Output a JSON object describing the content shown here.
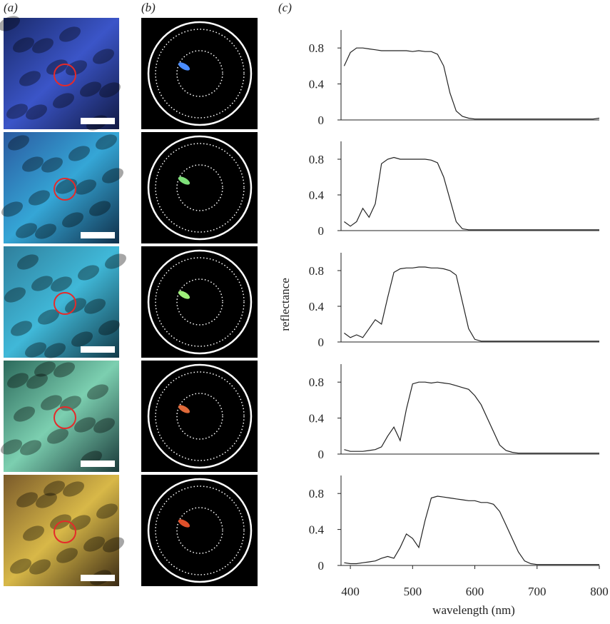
{
  "panel_labels": [
    "(a)",
    "(b)",
    "(c)"
  ],
  "chart_data": [
    {
      "type": "line",
      "x": [
        390,
        400,
        410,
        420,
        430,
        440,
        450,
        460,
        470,
        480,
        490,
        500,
        510,
        520,
        530,
        540,
        550,
        560,
        570,
        580,
        590,
        600,
        610,
        620,
        630,
        640,
        650,
        660,
        670,
        680,
        690,
        700,
        710,
        720,
        730,
        740,
        750,
        760,
        770,
        780,
        790,
        800
      ],
      "series": [
        {
          "color": "#222222",
          "values": [
            0.6,
            0.75,
            0.8,
            0.8,
            0.79,
            0.78,
            0.77,
            0.77,
            0.77,
            0.77,
            0.77,
            0.76,
            0.77,
            0.76,
            0.76,
            0.73,
            0.6,
            0.3,
            0.1,
            0.04,
            0.02,
            0.01,
            0.01,
            0.01,
            0.01,
            0.01,
            0.01,
            0.01,
            0.01,
            0.01,
            0.01,
            0.01,
            0.01,
            0.01,
            0.01,
            0.01,
            0.01,
            0.01,
            0.01,
            0.01,
            0.01,
            0.02
          ]
        }
      ],
      "xlim": [
        385,
        800
      ],
      "ylim": [
        0,
        1
      ],
      "yticks": [
        0,
        0.4,
        0.8
      ]
    },
    {
      "type": "line",
      "x": [
        390,
        400,
        410,
        420,
        430,
        440,
        450,
        460,
        470,
        480,
        490,
        500,
        510,
        520,
        530,
        540,
        550,
        560,
        570,
        580,
        590,
        600,
        610,
        620,
        630,
        640,
        650,
        660,
        670,
        680,
        690,
        700,
        710,
        720,
        730,
        740,
        750,
        760,
        770,
        780,
        790,
        800
      ],
      "series": [
        {
          "color": "#222222",
          "values": [
            0.1,
            0.05,
            0.1,
            0.25,
            0.15,
            0.3,
            0.75,
            0.8,
            0.82,
            0.8,
            0.8,
            0.8,
            0.8,
            0.8,
            0.79,
            0.76,
            0.6,
            0.35,
            0.1,
            0.02,
            0.01,
            0.01,
            0.01,
            0.01,
            0.01,
            0.01,
            0.01,
            0.01,
            0.01,
            0.01,
            0.01,
            0.01,
            0.01,
            0.01,
            0.01,
            0.01,
            0.01,
            0.01,
            0.01,
            0.01,
            0.01,
            0.01
          ]
        }
      ],
      "xlim": [
        385,
        800
      ],
      "ylim": [
        0,
        1
      ],
      "yticks": [
        0,
        0.4,
        0.8
      ]
    },
    {
      "type": "line",
      "ylabel": "reflectance",
      "x": [
        390,
        400,
        410,
        420,
        430,
        440,
        450,
        460,
        470,
        480,
        490,
        500,
        510,
        520,
        530,
        540,
        550,
        560,
        570,
        580,
        590,
        600,
        610,
        620,
        630,
        640,
        650,
        660,
        670,
        680,
        690,
        700,
        710,
        720,
        730,
        740,
        750,
        760,
        770,
        780,
        790,
        800
      ],
      "series": [
        {
          "color": "#222222",
          "values": [
            0.1,
            0.05,
            0.08,
            0.05,
            0.15,
            0.25,
            0.2,
            0.5,
            0.78,
            0.82,
            0.83,
            0.83,
            0.84,
            0.84,
            0.83,
            0.83,
            0.82,
            0.8,
            0.75,
            0.45,
            0.15,
            0.03,
            0.01,
            0.01,
            0.01,
            0.01,
            0.01,
            0.01,
            0.01,
            0.01,
            0.01,
            0.01,
            0.01,
            0.01,
            0.01,
            0.01,
            0.01,
            0.01,
            0.01,
            0.01,
            0.01,
            0.01
          ]
        }
      ],
      "xlim": [
        385,
        800
      ],
      "ylim": [
        0,
        1
      ],
      "yticks": [
        0,
        0.4,
        0.8
      ]
    },
    {
      "type": "line",
      "x": [
        390,
        400,
        410,
        420,
        430,
        440,
        450,
        460,
        470,
        480,
        490,
        500,
        510,
        520,
        530,
        540,
        550,
        560,
        570,
        580,
        590,
        600,
        610,
        620,
        630,
        640,
        650,
        660,
        670,
        680,
        690,
        700,
        710,
        720,
        730,
        740,
        750,
        760,
        770,
        780,
        790,
        800
      ],
      "series": [
        {
          "color": "#222222",
          "values": [
            0.05,
            0.03,
            0.03,
            0.03,
            0.04,
            0.05,
            0.08,
            0.2,
            0.3,
            0.15,
            0.5,
            0.78,
            0.8,
            0.8,
            0.79,
            0.8,
            0.79,
            0.78,
            0.76,
            0.74,
            0.72,
            0.65,
            0.55,
            0.4,
            0.25,
            0.1,
            0.04,
            0.02,
            0.01,
            0.01,
            0.01,
            0.01,
            0.01,
            0.01,
            0.01,
            0.01,
            0.01,
            0.01,
            0.01,
            0.01,
            0.01,
            0.01
          ]
        }
      ],
      "xlim": [
        385,
        800
      ],
      "ylim": [
        0,
        1
      ],
      "yticks": [
        0,
        0.4,
        0.8
      ]
    },
    {
      "type": "line",
      "xlabel": "wavelength (nm)",
      "x": [
        390,
        400,
        410,
        420,
        430,
        440,
        450,
        460,
        470,
        480,
        490,
        500,
        510,
        520,
        530,
        540,
        550,
        560,
        570,
        580,
        590,
        600,
        610,
        620,
        630,
        640,
        650,
        660,
        670,
        680,
        690,
        700,
        710,
        720,
        730,
        740,
        750,
        760,
        770,
        780,
        790,
        800
      ],
      "series": [
        {
          "color": "#222222",
          "values": [
            0.03,
            0.02,
            0.02,
            0.03,
            0.04,
            0.05,
            0.08,
            0.1,
            0.08,
            0.2,
            0.35,
            0.3,
            0.2,
            0.5,
            0.75,
            0.77,
            0.76,
            0.75,
            0.74,
            0.73,
            0.72,
            0.72,
            0.7,
            0.7,
            0.68,
            0.6,
            0.45,
            0.3,
            0.15,
            0.05,
            0.02,
            0.01,
            0.01,
            0.01,
            0.01,
            0.01,
            0.01,
            0.01,
            0.01,
            0.01,
            0.01,
            0.01
          ]
        }
      ],
      "xlim": [
        385,
        800
      ],
      "ylim": [
        0,
        1
      ],
      "yticks": [
        0,
        0.4,
        0.8
      ],
      "xticks": [
        400,
        500,
        600,
        700,
        800
      ]
    }
  ]
}
